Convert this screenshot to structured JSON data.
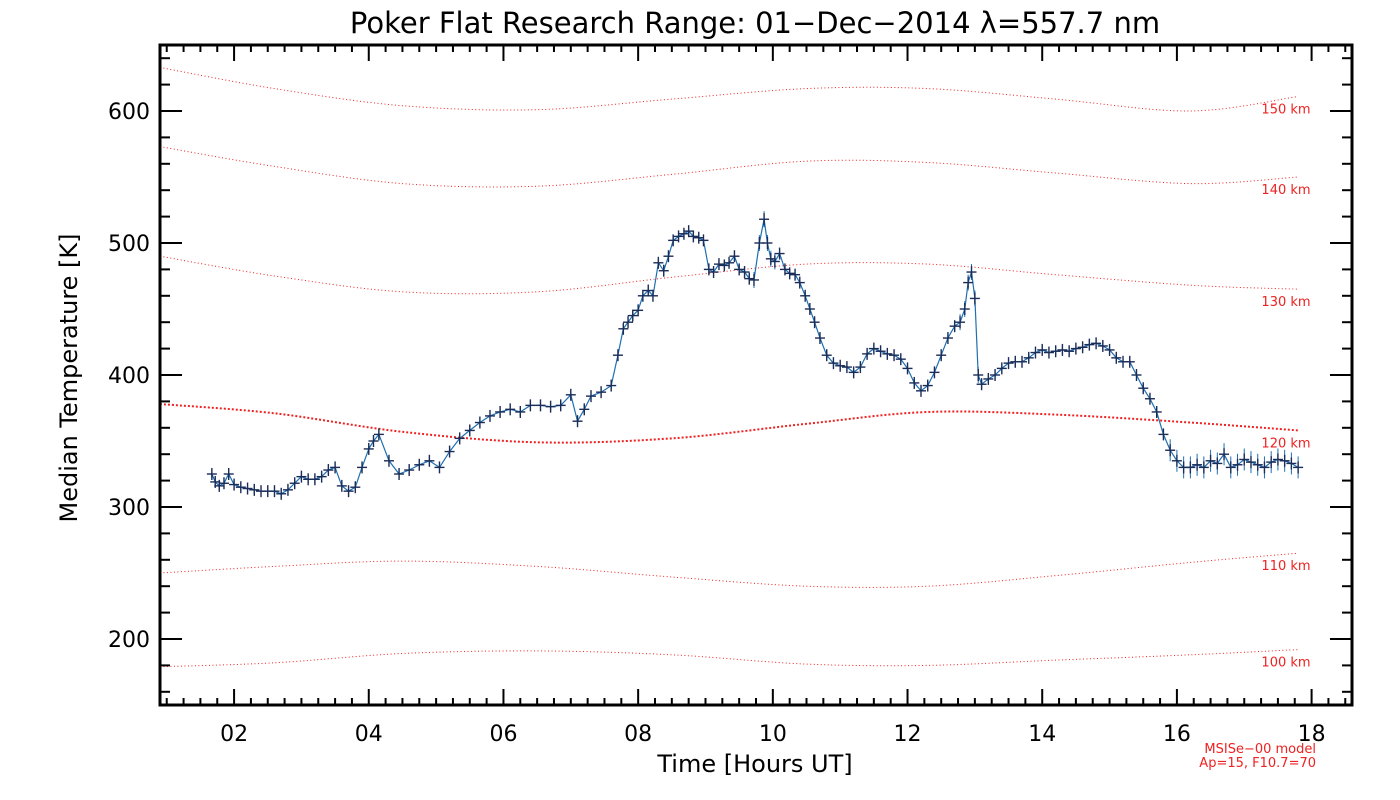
{
  "chart_data": {
    "type": "line",
    "title": "Poker Flat Research Range: 01−Dec−2014 λ=557.7 nm",
    "xlabel": "Time [Hours UT]",
    "ylabel": "Median Temperature [K]",
    "xlim": [
      0.9,
      18.6
    ],
    "ylim": [
      150,
      650
    ],
    "xticks": [
      2,
      4,
      6,
      8,
      10,
      12,
      14,
      16,
      18
    ],
    "xtick_labels": [
      "02",
      "04",
      "06",
      "08",
      "10",
      "12",
      "14",
      "16",
      "18"
    ],
    "yticks": [
      200,
      300,
      400,
      500,
      600
    ],
    "ytick_labels": [
      "200",
      "300",
      "400",
      "500",
      "600"
    ],
    "grid": false,
    "colors": {
      "data": "#1a2c58",
      "data_errorbar": "#1f6fb0",
      "model": "#ee2222",
      "axes": "#000000"
    },
    "series": [
      {
        "role": "measured",
        "x": [
          1.67,
          1.72,
          1.78,
          1.85,
          1.92,
          2.0,
          2.1,
          2.2,
          2.3,
          2.4,
          2.5,
          2.6,
          2.7,
          2.8,
          2.9,
          3.0,
          3.1,
          3.2,
          3.3,
          3.4,
          3.5,
          3.6,
          3.7,
          3.8,
          3.9,
          4.0,
          4.07,
          4.15,
          4.3,
          4.45,
          4.6,
          4.75,
          4.9,
          5.05,
          5.2,
          5.35,
          5.5,
          5.65,
          5.8,
          5.95,
          6.1,
          6.25,
          6.4,
          6.55,
          6.7,
          6.85,
          7.0,
          7.1,
          7.2,
          7.3,
          7.45,
          7.6,
          7.7,
          7.78,
          7.85,
          7.92,
          8.0,
          8.07,
          8.15,
          8.22,
          8.3,
          8.38,
          8.45,
          8.52,
          8.6,
          8.68,
          8.75,
          8.82,
          8.9,
          8.97,
          9.05,
          9.12,
          9.2,
          9.28,
          9.35,
          9.43,
          9.5,
          9.58,
          9.65,
          9.72,
          9.8,
          9.87,
          9.92,
          9.97,
          10.03,
          10.1,
          10.18,
          10.25,
          10.33,
          10.4,
          10.48,
          10.55,
          10.62,
          10.7,
          10.8,
          10.9,
          11.0,
          11.1,
          11.2,
          11.3,
          11.4,
          11.5,
          11.6,
          11.7,
          11.8,
          11.9,
          12.0,
          12.1,
          12.2,
          12.3,
          12.4,
          12.5,
          12.6,
          12.7,
          12.78,
          12.85,
          12.9,
          12.95,
          13.0,
          13.05,
          13.1,
          13.2,
          13.3,
          13.4,
          13.5,
          13.6,
          13.7,
          13.8,
          13.9,
          14.0,
          14.1,
          14.2,
          14.3,
          14.4,
          14.5,
          14.6,
          14.7,
          14.8,
          14.9,
          15.0,
          15.1,
          15.2,
          15.3,
          15.4,
          15.5,
          15.6,
          15.7,
          15.8,
          15.9,
          16.0,
          16.1,
          16.2,
          16.3,
          16.4,
          16.5,
          16.6,
          16.7,
          16.8,
          16.9,
          17.0,
          17.1,
          17.2,
          17.3,
          17.4,
          17.5,
          17.6,
          17.7,
          17.8
        ],
        "y": [
          325,
          319,
          316,
          318,
          325,
          317,
          315,
          314,
          313,
          312,
          312,
          312,
          310,
          313,
          318,
          323,
          321,
          321,
          323,
          328,
          330,
          316,
          312,
          315,
          330,
          344,
          350,
          355,
          335,
          325,
          328,
          332,
          335,
          330,
          342,
          352,
          358,
          364,
          369,
          372,
          374,
          372,
          377,
          377,
          376,
          377,
          385,
          365,
          374,
          384,
          387,
          392,
          415,
          435,
          440,
          445,
          449,
          460,
          464,
          460,
          485,
          479,
          490,
          502,
          505,
          507,
          509,
          505,
          504,
          502,
          480,
          478,
          484,
          483,
          485,
          490,
          480,
          478,
          473,
          472,
          500,
          518,
          500,
          488,
          486,
          492,
          480,
          477,
          476,
          470,
          460,
          450,
          440,
          428,
          415,
          409,
          407,
          406,
          402,
          406,
          416,
          420,
          418,
          416,
          415,
          412,
          405,
          394,
          388,
          392,
          402,
          415,
          428,
          437,
          440,
          450,
          470,
          478,
          458,
          400,
          393,
          397,
          400,
          405,
          409,
          410,
          410,
          413,
          417,
          419,
          417,
          418,
          419,
          418,
          420,
          421,
          423,
          424,
          422,
          419,
          413,
          410,
          410,
          400,
          390,
          382,
          372,
          355,
          343,
          335,
          330,
          330,
          332,
          330,
          335,
          333,
          340,
          330,
          332,
          336,
          334,
          332,
          330,
          334,
          336,
          335,
          333,
          330
        ]
      }
    ],
    "model_curves": [
      {
        "label": "100 km",
        "x": [
          0.9,
          2.6,
          4.5,
          6.5,
          8.5,
          10.5,
          12.3,
          14.2,
          16.2,
          17.8
        ],
        "y": [
          179,
          182,
          189,
          191,
          188,
          181,
          180,
          184,
          188,
          192
        ]
      },
      {
        "label": "110 km",
        "x": [
          0.9,
          2.6,
          4.5,
          6.5,
          8.5,
          10.5,
          12.3,
          14.2,
          16.2,
          17.8
        ],
        "y": [
          250,
          255,
          259,
          255,
          247,
          240,
          240,
          248,
          258,
          265
        ]
      },
      {
        "label": "120 km",
        "x": [
          0.9,
          2.6,
          4.5,
          6.5,
          8.5,
          10.5,
          12.3,
          14.2,
          16.2,
          17.8
        ],
        "y": [
          378,
          371,
          357,
          349,
          352,
          363,
          372,
          370,
          364,
          358
        ]
      },
      {
        "label": "130 km",
        "x": [
          0.9,
          2.6,
          4.5,
          6.5,
          8.5,
          10.5,
          12.3,
          14.2,
          16.2,
          17.8
        ],
        "y": [
          490,
          475,
          463,
          463,
          474,
          484,
          484,
          476,
          468,
          465
        ]
      },
      {
        "label": "140 km",
        "x": [
          0.9,
          2.6,
          4.5,
          6.5,
          8.5,
          10.5,
          12.3,
          14.2,
          16.2,
          17.8
        ],
        "y": [
          573,
          558,
          545,
          543,
          552,
          562,
          561,
          553,
          545,
          550
        ]
      },
      {
        "label": "150 km",
        "x": [
          0.9,
          2.6,
          4.5,
          6.5,
          8.5,
          10.5,
          12.3,
          14.2,
          16.2,
          17.8
        ],
        "y": [
          633,
          617,
          604,
          601,
          609,
          617,
          617,
          609,
          600,
          611
        ]
      }
    ],
    "annotations": [
      "MSISe−00 model",
      "Ap=15, F10.7=70"
    ]
  }
}
